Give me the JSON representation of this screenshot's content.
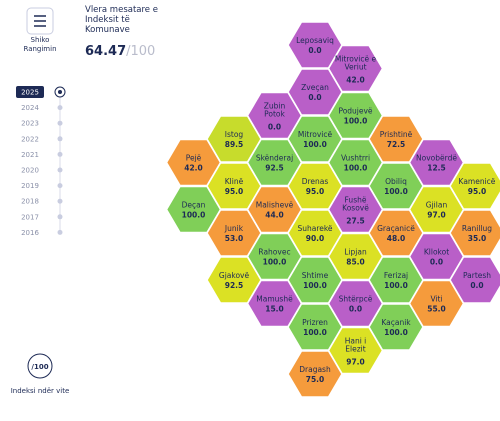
{
  "sidebar": {
    "button": "Shiko Rangimin",
    "years": [
      "2025",
      "2024",
      "2023",
      "2022",
      "2021",
      "2020",
      "2019",
      "2018",
      "2017",
      "2016"
    ],
    "selected_year": "2025",
    "footer_icon": "/100",
    "footer": "Indeksi ndër vite"
  },
  "header": {
    "title": "Vlera mesatare e Indeksit të Komunave",
    "score": "64.47",
    "max": "/100"
  },
  "hexes": [
    {
      "name": "Leposaviq",
      "value": "0.0",
      "col": 3,
      "row": 0,
      "color": "#b95fc8"
    },
    {
      "name": "Mitrovicë e Veriut",
      "value": "42.0",
      "col": 4,
      "row": 1,
      "color": "#b95fc8"
    },
    {
      "name": "Zveçan",
      "value": "0.0",
      "col": 3,
      "row": 2,
      "color": "#b95fc8"
    },
    {
      "name": "Zubin Potok",
      "value": "0.0",
      "col": 2,
      "row": 3,
      "color": "#b95fc8"
    },
    {
      "name": "Podujevë",
      "value": "100.0",
      "col": 4,
      "row": 3,
      "color": "#80cf58"
    },
    {
      "name": "Istog",
      "value": "89.5",
      "col": 1,
      "row": 4,
      "color": "#c7dc2c"
    },
    {
      "name": "Mitrovicë",
      "value": "100.0",
      "col": 3,
      "row": 4,
      "color": "#80cf58"
    },
    {
      "name": "Prishtinë",
      "value": "72.5",
      "col": 5,
      "row": 4,
      "color": "#f59b3c"
    },
    {
      "name": "Pejë",
      "value": "42.0",
      "col": 0,
      "row": 5,
      "color": "#f59b3c"
    },
    {
      "name": "Skënderaj",
      "value": "92.5",
      "col": 2,
      "row": 5,
      "color": "#80cf58"
    },
    {
      "name": "Vushtrri",
      "value": "100.0",
      "col": 4,
      "row": 5,
      "color": "#80cf58"
    },
    {
      "name": "Novobërdë",
      "value": "12.5",
      "col": 6,
      "row": 5,
      "color": "#b95fc8"
    },
    {
      "name": "Klinë",
      "value": "95.0",
      "col": 1,
      "row": 6,
      "color": "#dbe124"
    },
    {
      "name": "Drenas",
      "value": "95.0",
      "col": 3,
      "row": 6,
      "color": "#dbe124"
    },
    {
      "name": "Obiliq",
      "value": "100.0",
      "col": 5,
      "row": 6,
      "color": "#80cf58"
    },
    {
      "name": "Kamenicë",
      "value": "95.0",
      "col": 7,
      "row": 6,
      "color": "#dbe124"
    },
    {
      "name": "Deçan",
      "value": "100.0",
      "col": 0,
      "row": 7,
      "color": "#80cf58"
    },
    {
      "name": "Malishevë",
      "value": "44.0",
      "col": 2,
      "row": 7,
      "color": "#f59b3c"
    },
    {
      "name": "Fushë Kosovë",
      "value": "27.5",
      "col": 4,
      "row": 7,
      "color": "#b95fc8"
    },
    {
      "name": "Gjilan",
      "value": "97.0",
      "col": 6,
      "row": 7,
      "color": "#dbe124"
    },
    {
      "name": "Junik",
      "value": "53.0",
      "col": 1,
      "row": 8,
      "color": "#f59b3c"
    },
    {
      "name": "Suharekë",
      "value": "90.0",
      "col": 3,
      "row": 8,
      "color": "#dbe124"
    },
    {
      "name": "Graçanicë",
      "value": "48.0",
      "col": 5,
      "row": 8,
      "color": "#f59b3c"
    },
    {
      "name": "Ranillug",
      "value": "35.0",
      "col": 7,
      "row": 8,
      "color": "#f59b3c"
    },
    {
      "name": "Rahovec",
      "value": "100.0",
      "col": 2,
      "row": 9,
      "color": "#80cf58"
    },
    {
      "name": "Lipjan",
      "value": "85.0",
      "col": 4,
      "row": 9,
      "color": "#dbe124"
    },
    {
      "name": "Kllokot",
      "value": "0.0",
      "col": 6,
      "row": 9,
      "color": "#b95fc8"
    },
    {
      "name": "Gjakovë",
      "value": "92.5",
      "col": 1,
      "row": 10,
      "color": "#dbe124"
    },
    {
      "name": "Shtime",
      "value": "100.0",
      "col": 3,
      "row": 10,
      "color": "#80cf58"
    },
    {
      "name": "Ferizaj",
      "value": "100.0",
      "col": 5,
      "row": 10,
      "color": "#80cf58"
    },
    {
      "name": "Partesh",
      "value": "0.0",
      "col": 7,
      "row": 10,
      "color": "#b95fc8"
    },
    {
      "name": "Mamushë",
      "value": "15.0",
      "col": 2,
      "row": 11,
      "color": "#b95fc8"
    },
    {
      "name": "Shtërpcë",
      "value": "0.0",
      "col": 4,
      "row": 11,
      "color": "#b95fc8"
    },
    {
      "name": "Viti",
      "value": "55.0",
      "col": 6,
      "row": 11,
      "color": "#f59b3c"
    },
    {
      "name": "Prizren",
      "value": "100.0",
      "col": 3,
      "row": 12,
      "color": "#80cf58"
    },
    {
      "name": "Kaçanik",
      "value": "100.0",
      "col": 5,
      "row": 12,
      "color": "#80cf58"
    },
    {
      "name": "Hani i Elezit",
      "value": "97.0",
      "col": 4,
      "row": 13,
      "color": "#dbe124"
    },
    {
      "name": "Dragash",
      "value": "75.0",
      "col": 3,
      "row": 14,
      "color": "#f59b3c"
    }
  ]
}
